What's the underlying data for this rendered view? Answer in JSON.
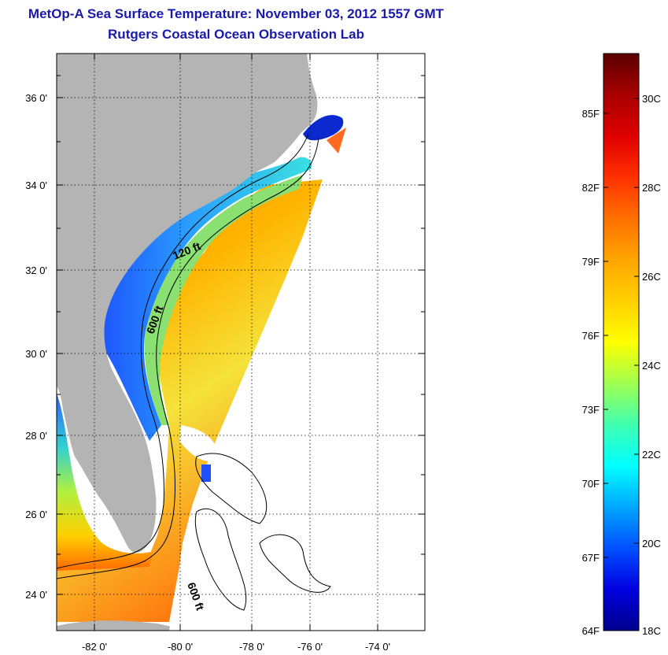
{
  "title": "MetOp-A Sea Surface Temperature:  November 03, 2012 1557 GMT",
  "subtitle": "Rutgers Coastal Ocean Observation Lab",
  "map": {
    "lat_ticks": [
      "36 0'",
      "34 0'",
      "32 0'",
      "30 0'",
      "28 0'",
      "26 0'",
      "24 0'"
    ],
    "lon_ticks": [
      "-82 0'",
      "-80 0'",
      "-78 0'",
      "-76 0'",
      "-74 0'"
    ],
    "contour_labels": [
      "120 ft",
      "600 ft",
      "600 ft"
    ]
  },
  "colorbar": {
    "f_labels": [
      "85F",
      "82F",
      "79F",
      "76F",
      "73F",
      "70F",
      "67F",
      "64F"
    ],
    "c_labels": [
      "30C",
      "28C",
      "26C",
      "24C",
      "22C",
      "20C",
      "18C"
    ],
    "stops": [
      "#5a0000",
      "#a80000",
      "#e00000",
      "#ff3000",
      "#ff7000",
      "#ffa500",
      "#ffd000",
      "#ffff00",
      "#a0ff50",
      "#40ffb0",
      "#00ffff",
      "#00a8ff",
      "#0050ff",
      "#0000e0",
      "#00008c"
    ]
  },
  "colors": {
    "title": "#1a1aa8",
    "land": "#b4b4b4"
  }
}
